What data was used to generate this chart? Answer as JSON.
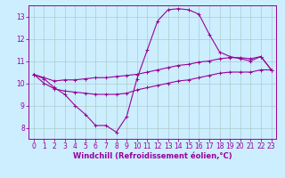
{
  "bg_color": "#cceeff",
  "line_color": "#990099",
  "grid_color": "#aacccc",
  "xlabel": "Windchill (Refroidissement éolien,°C)",
  "xlim": [
    -0.5,
    23.5
  ],
  "ylim": [
    7.5,
    13.5
  ],
  "yticks": [
    8,
    9,
    10,
    11,
    12,
    13
  ],
  "xticks": [
    0,
    1,
    2,
    3,
    4,
    5,
    6,
    7,
    8,
    9,
    10,
    11,
    12,
    13,
    14,
    15,
    16,
    17,
    18,
    19,
    20,
    21,
    22,
    23
  ],
  "series": {
    "main": [
      10.4,
      10.2,
      9.8,
      9.5,
      9.0,
      8.6,
      8.1,
      8.1,
      7.8,
      8.5,
      10.2,
      11.5,
      12.8,
      13.3,
      13.35,
      13.3,
      13.1,
      12.2,
      11.4,
      11.2,
      11.1,
      11.0,
      11.2,
      10.6
    ],
    "upper": [
      10.4,
      10.25,
      10.1,
      10.15,
      10.15,
      10.2,
      10.25,
      10.25,
      10.3,
      10.35,
      10.4,
      10.5,
      10.6,
      10.7,
      10.8,
      10.85,
      10.95,
      11.0,
      11.1,
      11.15,
      11.15,
      11.1,
      11.2,
      10.6
    ],
    "lower": [
      10.4,
      10.0,
      9.75,
      9.65,
      9.6,
      9.55,
      9.5,
      9.5,
      9.5,
      9.55,
      9.7,
      9.8,
      9.9,
      10.0,
      10.1,
      10.15,
      10.25,
      10.35,
      10.45,
      10.5,
      10.5,
      10.5,
      10.6,
      10.6
    ]
  },
  "xlabel_fontsize": 6,
  "tick_fontsize": 5.5,
  "line_width": 0.8,
  "marker": "+",
  "marker_size": 3.0,
  "marker_edge_width": 0.7
}
